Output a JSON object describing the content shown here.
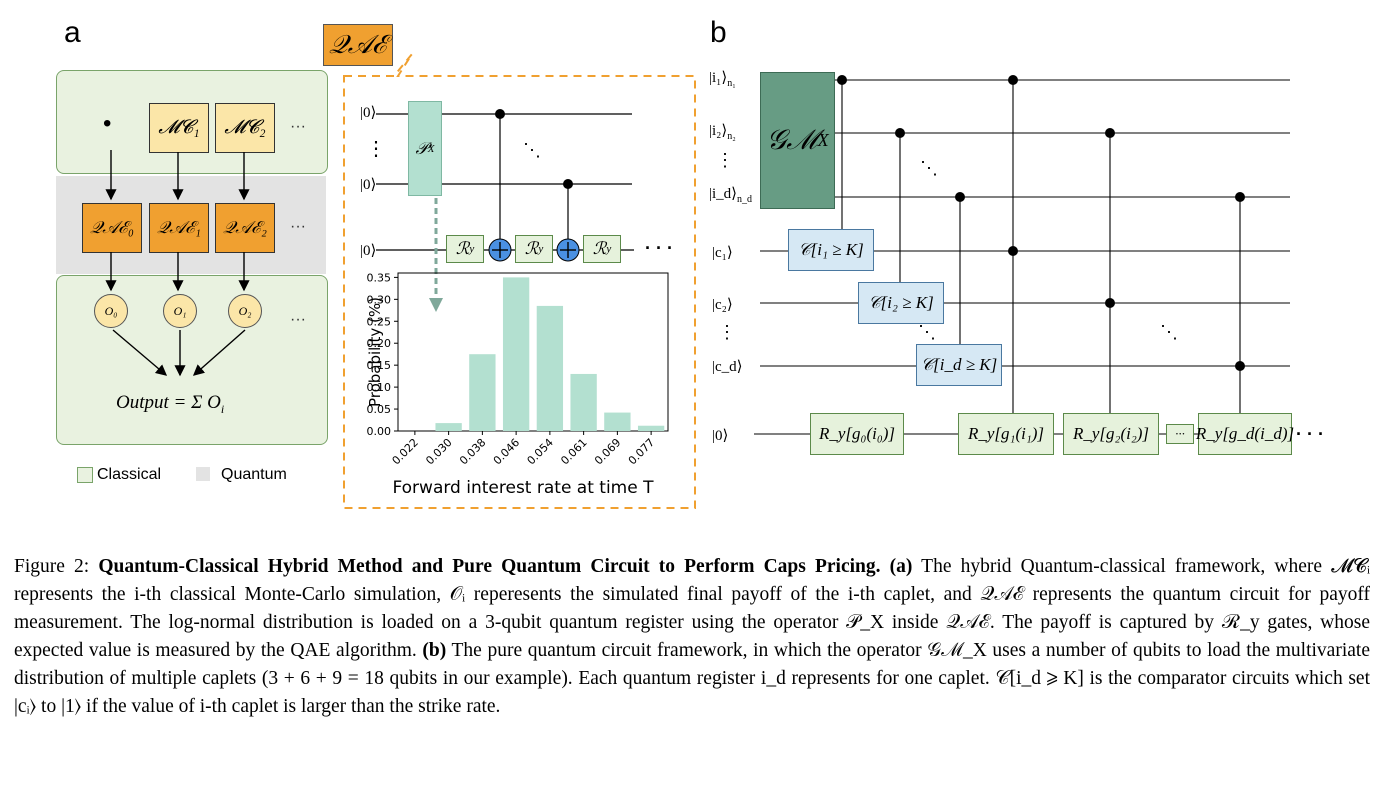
{
  "panel_a": {
    "letter": "a",
    "dot": "•",
    "mc_boxes": [
      "𝓜𝓒₁",
      "𝓜𝓒₂"
    ],
    "qae_boxes": [
      "𝒬𝒜ℰ₀",
      "𝒬𝒜ℰ₁",
      "𝒬𝒜ℰ₂"
    ],
    "o_circles": [
      "O₀",
      "O₁",
      "O₂"
    ],
    "ellipsis": "···",
    "output_formula": "Output = Σ O",
    "output_sub_i": "i",
    "legend": {
      "classical": "Classical",
      "quantum": "Quantum"
    },
    "colors": {
      "classical_fill": "#e9f2e0",
      "quantum_fill": "#e3e3e3",
      "mc_fill": "#fbe6a8",
      "qae_fill": "#f0a030"
    }
  },
  "qae_zoom": {
    "label": "𝒬𝒜ℰ",
    "kets": [
      "|0⟩",
      "⋮",
      "|0⟩",
      "|0⟩"
    ],
    "px_gate": "𝒫",
    "px_sub": "X",
    "ry_gate": "ℛ",
    "ry_sub": "y",
    "dots": "· · ·",
    "diag_dots": "⋱"
  },
  "chart_data": {
    "type": "bar",
    "categories": [
      "0.022",
      "0.030",
      "0.038",
      "0.046",
      "0.054",
      "0.061",
      "0.069",
      "0.077"
    ],
    "values": [
      0.0,
      0.018,
      0.175,
      0.35,
      0.285,
      0.13,
      0.042,
      0.012
    ],
    "title": "",
    "xlabel": "Forward interest rate at time T",
    "ylabel": "Probability (%)",
    "ylim": [
      0,
      0.36
    ],
    "yticks": [
      "0.00",
      "0.05",
      "0.10",
      "0.15",
      "0.20",
      "0.25",
      "0.30",
      "0.35"
    ],
    "bar_color": "#b3e0d0",
    "grid": false
  },
  "panel_b": {
    "letter": "b",
    "kets": [
      "|i₁⟩",
      "|i₂⟩",
      "⋮",
      "|i_d⟩",
      "|c₁⟩",
      "|c₂⟩",
      "⋮",
      "|c_d⟩",
      "|0⟩"
    ],
    "ket_subs": [
      "n₁",
      "n₂",
      "",
      "n_d"
    ],
    "gm_gate": "𝒢ℳ",
    "gm_sub": "X",
    "comparators": [
      "𝒞[i₁ ≥ K]",
      "𝒞[i₂ ≥ K]",
      "𝒞[i_d ≥ K]"
    ],
    "ry_gates": [
      "R_y[g₀(i₀)]",
      "R_y[g₁(i₁)]",
      "R_y[g₂(i₂)]",
      "···",
      "R_y[g_d(i_d)]"
    ],
    "trailing_dots": "· · ·",
    "diag_dots": "⋱",
    "colors": {
      "gm_fill": "#679c84",
      "comparator_fill": "#d6e8f4",
      "ry_fill": "#e6f2dc"
    }
  },
  "caption": {
    "prefix": "Figure 2: ",
    "title": "Quantum-Classical Hybrid Method and Pure Quantum Circuit to Perform Caps Pricing.",
    "a_tag": "(a)",
    "a_text": "The hybrid Quantum-classical framework, where 𝓜𝓒ᵢ represents the i-th classical Monte-Carlo simulation, 𝒪ᵢ reperesents the simulated final payoff of the i-th caplet, and 𝒬𝒜ℰ represents the quantum circuit for payoff measurement. The log-normal distribution is loaded on a 3-qubit quantum register using the operator 𝒫_X inside 𝒬𝒜ℰ. The payoff is captured by ℛ_y gates, whose expected value is measured by the QAE algorithm.",
    "b_tag": "(b)",
    "b_text": "The pure quantum circuit framework, in which the operator 𝒢ℳ_X uses a number of qubits to load the multivariate distribution of multiple caplets (3 + 6 + 9 = 18 qubits in our example). Each quantum register i_d represents for one caplet. 𝒞[i_d ⩾ K] is the comparator circuits which set |cᵢ⟩ to |1⟩ if the value of i-th caplet is larger than the strike rate."
  }
}
